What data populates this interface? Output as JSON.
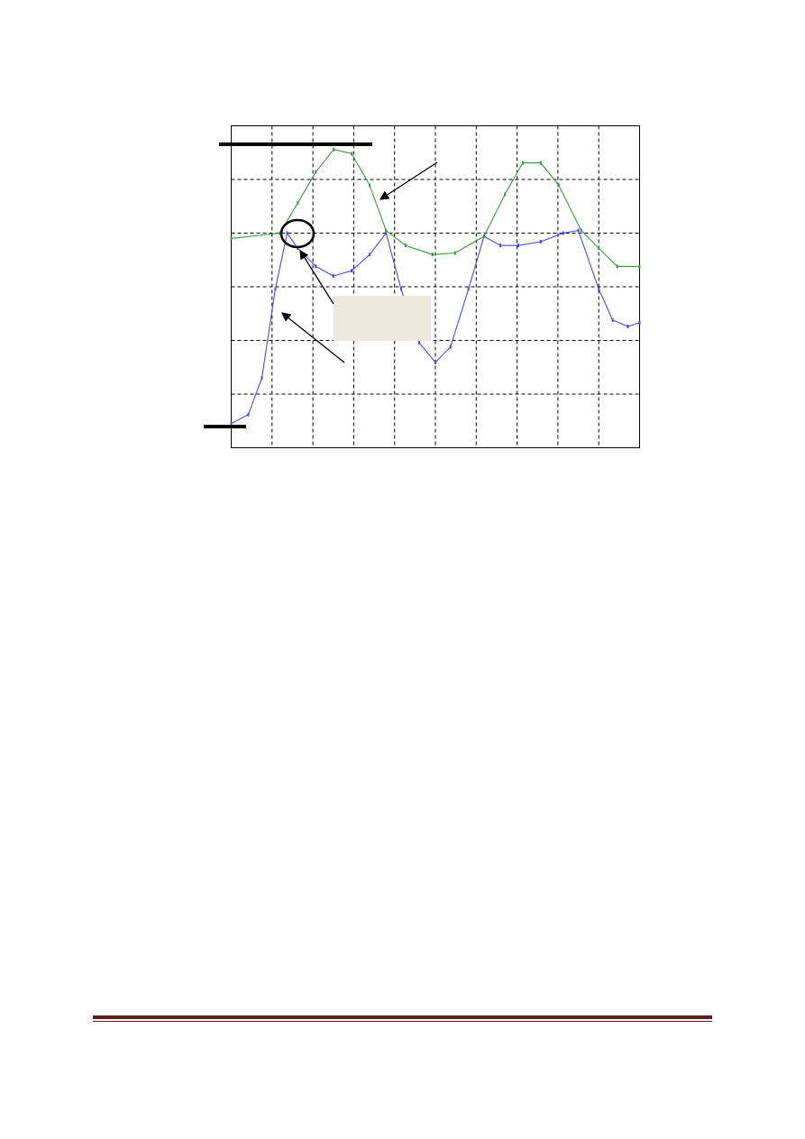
{
  "chart_data": {
    "type": "line",
    "title": "",
    "xlabel": "",
    "ylabel": "",
    "xlim": [
      0,
      10
    ],
    "ylim": [
      0,
      6
    ],
    "grid": true,
    "grid_style": "dashed",
    "tick_labels": "none",
    "series": [
      {
        "color": "#4a4af0",
        "x": [
          0,
          0.42,
          0.75,
          1.08,
          1.37,
          1.63,
          2.07,
          2.5,
          2.95,
          3.39,
          3.79,
          4.16,
          4.6,
          5.0,
          5.37,
          5.81,
          6.19,
          6.59,
          7.03,
          7.58,
          8.13,
          8.5,
          9.0,
          9.34,
          9.71,
          10
        ],
        "y": [
          0.45,
          0.62,
          1.3,
          2.96,
          4.0,
          3.72,
          3.38,
          3.2,
          3.3,
          3.6,
          4.0,
          2.96,
          1.96,
          1.59,
          1.88,
          2.96,
          3.94,
          3.77,
          3.77,
          3.84,
          4.0,
          4.05,
          2.96,
          2.38,
          2.26,
          2.33
        ]
      },
      {
        "color": "#3a9a3a",
        "x": [
          0,
          1.19,
          1.63,
          2.07,
          2.51,
          2.95,
          3.39,
          3.79,
          4.27,
          4.93,
          5.48,
          6.19,
          6.7,
          7.14,
          7.58,
          8.02,
          8.57,
          9.0,
          9.45,
          10
        ],
        "y": [
          3.9,
          4.0,
          4.56,
          5.14,
          5.56,
          5.48,
          4.89,
          4.05,
          3.77,
          3.6,
          3.63,
          3.94,
          4.72,
          5.31,
          5.31,
          4.89,
          4.05,
          3.72,
          3.38,
          3.38
        ]
      }
    ],
    "annotations": {
      "label_box_color": "#ede9df",
      "highlight": "ellipse"
    }
  },
  "footer": {
    "rule_color": "#5c1f1f"
  }
}
